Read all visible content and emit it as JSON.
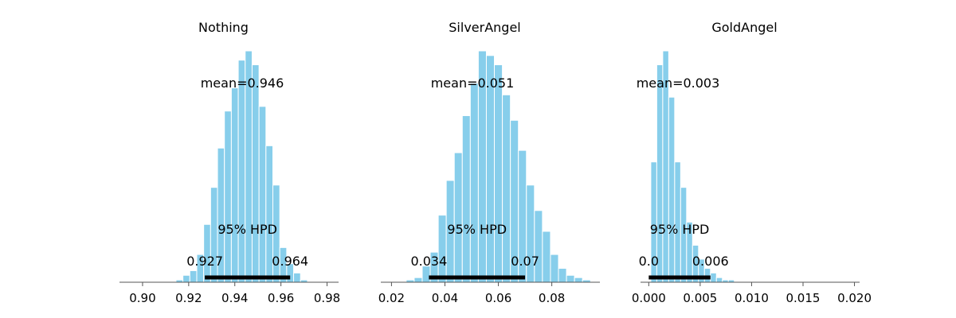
{
  "chart_data": [
    {
      "type": "bar",
      "title": "Nothing",
      "mean_label": "mean=0.946",
      "hpd_label": "95% HPD",
      "hpd": [
        0.927,
        0.964
      ],
      "hpd_low_label": "0.927",
      "hpd_high_label": "0.964",
      "xlim": [
        0.89,
        0.985
      ],
      "xticks": [
        0.9,
        0.92,
        0.94,
        0.96,
        0.98
      ],
      "xtick_labels": [
        "0.90",
        "0.92",
        "0.94",
        "0.96",
        "0.98"
      ],
      "bin_start": 0.9145,
      "bin_width": 0.003,
      "counts": [
        1,
        3,
        5,
        12,
        25,
        41,
        58,
        74,
        84,
        96,
        100,
        94,
        76,
        59,
        42,
        15,
        8,
        4,
        1
      ]
    },
    {
      "type": "bar",
      "title": "SilverAngel",
      "mean_label": "mean=0.051",
      "hpd_label": "95% HPD",
      "hpd": [
        0.034,
        0.07
      ],
      "hpd_low_label": "0.034",
      "hpd_high_label": "0.07",
      "xlim": [
        0.016,
        0.098
      ],
      "xticks": [
        0.02,
        0.04,
        0.06,
        0.08
      ],
      "xtick_labels": [
        "0.02",
        "0.04",
        "0.06",
        "0.08"
      ],
      "bin_start": 0.0255,
      "bin_width": 0.003,
      "counts": [
        1,
        2,
        7,
        13,
        29,
        44,
        56,
        72,
        86,
        100,
        98,
        94,
        81,
        70,
        57,
        42,
        31,
        22,
        12,
        6,
        3,
        2,
        1
      ]
    },
    {
      "type": "bar",
      "title": "GoldAngel",
      "mean_label": "mean=0.003",
      "hpd_label": "95% HPD",
      "hpd": [
        0.0,
        0.006
      ],
      "hpd_low_label": "0.0",
      "hpd_high_label": "0.006",
      "xlim": [
        -0.0008,
        0.0205
      ],
      "xticks": [
        0.0,
        0.005,
        0.01,
        0.015,
        0.02
      ],
      "xtick_labels": [
        "0.000",
        "0.005",
        "0.010",
        "0.015",
        "0.020"
      ],
      "bin_start": 0.0002,
      "bin_width": 0.00058,
      "counts": [
        52,
        94,
        100,
        80,
        52,
        41,
        26,
        16,
        10,
        6,
        4,
        2,
        1,
        1,
        0
      ]
    }
  ]
}
